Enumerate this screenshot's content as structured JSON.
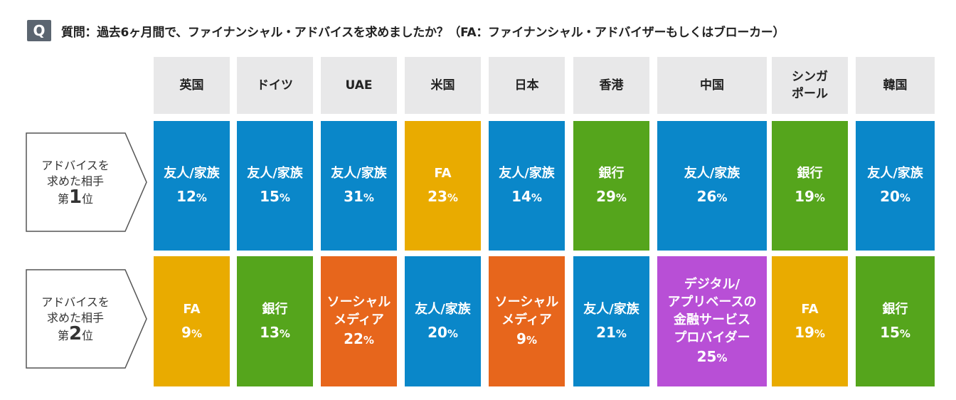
{
  "header": {
    "q_icon": "Q",
    "question": "質問：過去6ヶ月間で、ファイナンシャル・アドバイスを求めましたか？（FA：ファイナンシャル・アドバイザーもしくはブローカー）"
  },
  "rank_labels": [
    {
      "line1": "アドバイスを",
      "line2": "求めた相手",
      "prefix": "第",
      "num": "1",
      "suffix": "位"
    },
    {
      "line1": "アドバイスを",
      "line2": "求めた相手",
      "prefix": "第",
      "num": "2",
      "suffix": "位"
    }
  ],
  "colors": {
    "友人/家族": "#0a87c9",
    "FA": "#e9ab00",
    "銀行": "#55a51c",
    "ソーシャルメディア": "#e7661c",
    "デジタル/アプリベースの金融サービスプロバイダー": "#b84fd6"
  },
  "chart_data": {
    "type": "table",
    "title": "質問：過去6ヶ月間で、ファイナンシャル・アドバイスを求めましたか？（FA：ファイナンシャル・アドバイザーもしくはブローカー）",
    "categories": [
      "英国",
      "ドイツ",
      "UAE",
      "米国",
      "日本",
      "香港",
      "中国",
      "シンガポール",
      "韓国"
    ],
    "category_labels": [
      "英国",
      "ドイツ",
      "UAE",
      "米国",
      "日本",
      "香港",
      "中国",
      "シンガ\nポール",
      "韓国"
    ],
    "series": [
      {
        "name": "第1位",
        "entries": [
          {
            "source": "友人/家族",
            "lines": [
              "友人/家族"
            ],
            "value": 12
          },
          {
            "source": "友人/家族",
            "lines": [
              "友人/家族"
            ],
            "value": 15
          },
          {
            "source": "友人/家族",
            "lines": [
              "友人/家族"
            ],
            "value": 31
          },
          {
            "source": "FA",
            "lines": [
              "FA"
            ],
            "value": 23
          },
          {
            "source": "友人/家族",
            "lines": [
              "友人/家族"
            ],
            "value": 14
          },
          {
            "source": "銀行",
            "lines": [
              "銀行"
            ],
            "value": 29
          },
          {
            "source": "友人/家族",
            "lines": [
              "友人/家族"
            ],
            "value": 26
          },
          {
            "source": "銀行",
            "lines": [
              "銀行"
            ],
            "value": 19
          },
          {
            "source": "友人/家族",
            "lines": [
              "友人/家族"
            ],
            "value": 20
          }
        ]
      },
      {
        "name": "第2位",
        "entries": [
          {
            "source": "FA",
            "lines": [
              "FA"
            ],
            "value": 9
          },
          {
            "source": "銀行",
            "lines": [
              "銀行"
            ],
            "value": 13
          },
          {
            "source": "ソーシャルメディア",
            "lines": [
              "ソーシャル",
              "メディア"
            ],
            "value": 22
          },
          {
            "source": "友人/家族",
            "lines": [
              "友人/家族"
            ],
            "value": 20
          },
          {
            "source": "ソーシャルメディア",
            "lines": [
              "ソーシャル",
              "メディア"
            ],
            "value": 9
          },
          {
            "source": "友人/家族",
            "lines": [
              "友人/家族"
            ],
            "value": 21
          },
          {
            "source": "デジタル/アプリベースの金融サービスプロバイダー",
            "lines": [
              "デジタル/",
              "アプリベースの",
              "金融サービス",
              "プロバイダー"
            ],
            "value": 25
          },
          {
            "source": "FA",
            "lines": [
              "FA"
            ],
            "value": 19
          },
          {
            "source": "銀行",
            "lines": [
              "銀行"
            ],
            "value": 15
          }
        ]
      }
    ],
    "unit": "%"
  }
}
